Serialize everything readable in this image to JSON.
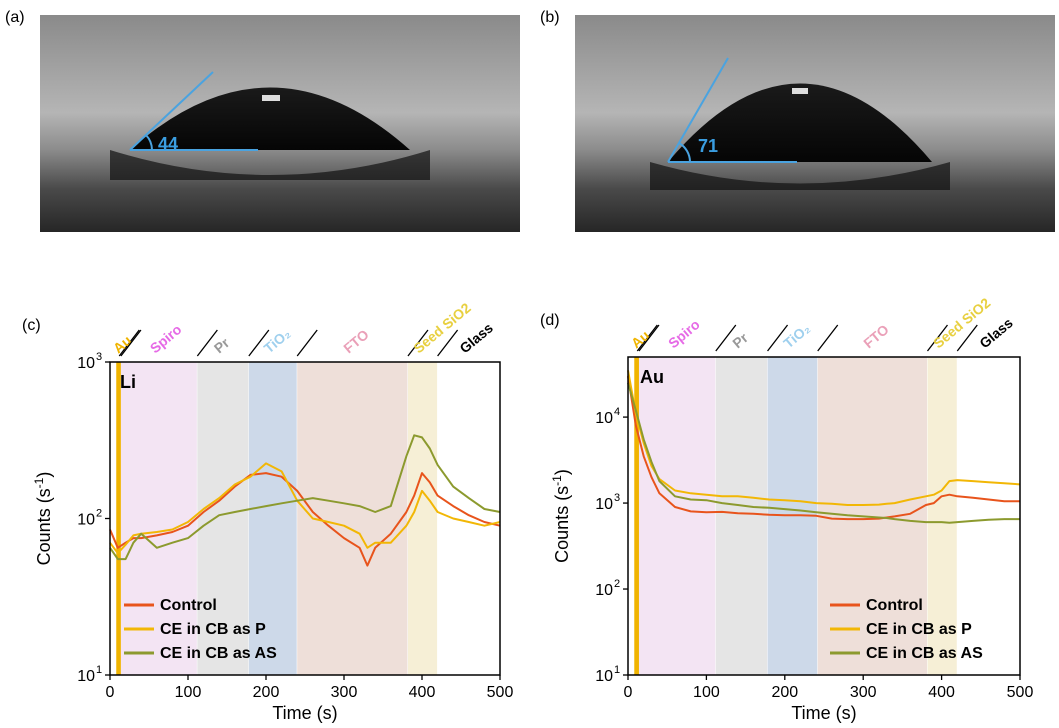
{
  "panels": [
    {
      "label": "(a)",
      "angle": "44"
    },
    {
      "label": "(b)",
      "angle": "71"
    }
  ],
  "chart_data": [
    {
      "type": "line",
      "panel_label": "(c)",
      "element": "Li",
      "xlabel": "Time (s)",
      "ylabel": "Counts (s",
      "ylabel_sup": "-1",
      "ylabel_end": ")",
      "log_y": true,
      "xlim": [
        0,
        500
      ],
      "xticks": [
        0,
        100,
        200,
        300,
        400,
        500
      ],
      "ylim": [
        10,
        1000
      ],
      "yticks": [
        {
          "value": 10,
          "label": "10",
          "exponent": "1"
        },
        {
          "value": 100,
          "label": "10",
          "exponent": "2"
        },
        {
          "value": 1000,
          "label": "10",
          "exponent": "3"
        }
      ],
      "legend": "lower left",
      "layers": [
        {
          "name": "Au",
          "start": 8,
          "end": 14,
          "color": "#f0b400",
          "label_color": "#f0b400"
        },
        {
          "name": "Spiro",
          "start": 14,
          "end": 112,
          "color": "#f3e4f3",
          "label_color": "#e66ae6"
        },
        {
          "name": "Pr",
          "start": 112,
          "end": 178,
          "color": "#e5e5e5",
          "label_color": "#999999"
        },
        {
          "name": "TiO₂",
          "start": 178,
          "end": 240,
          "color": "#cdd9e9",
          "label_color": "#9fd0ee"
        },
        {
          "name": "FTO",
          "start": 240,
          "end": 382,
          "color": "#eedfd9",
          "label_color": "#eaa0b8"
        },
        {
          "name": "Seed SiO2",
          "start": 382,
          "end": 420,
          "color": "#f6efd6",
          "label_color": "#e8d040"
        },
        {
          "name": "Glass",
          "start": 420,
          "end": 500,
          "color": "#ffffff",
          "label_color": "#000000"
        }
      ],
      "x": [
        0,
        10,
        20,
        30,
        40,
        60,
        80,
        100,
        120,
        140,
        160,
        180,
        200,
        220,
        240,
        260,
        280,
        300,
        320,
        330,
        340,
        360,
        380,
        390,
        400,
        410,
        420,
        440,
        460,
        480,
        500
      ],
      "series": [
        {
          "name": "Control",
          "color": "#e8541c",
          "values": [
            85,
            65,
            70,
            75,
            75,
            78,
            82,
            90,
            110,
            130,
            160,
            190,
            195,
            185,
            150,
            110,
            90,
            75,
            65,
            50,
            65,
            80,
            110,
            140,
            195,
            170,
            140,
            120,
            105,
            95,
            90
          ]
        },
        {
          "name": "CE in CB as P",
          "color": "#f2b705",
          "values": [
            70,
            60,
            68,
            78,
            80,
            82,
            85,
            95,
            115,
            135,
            165,
            185,
            225,
            200,
            130,
            100,
            95,
            90,
            80,
            65,
            70,
            70,
            90,
            110,
            150,
            130,
            110,
            100,
            95,
            90,
            95
          ]
        },
        {
          "name": "CE in CB as AS",
          "color": "#8c9a2e",
          "values": [
            65,
            55,
            55,
            70,
            80,
            65,
            70,
            75,
            90,
            105,
            110,
            115,
            120,
            125,
            130,
            135,
            130,
            125,
            120,
            115,
            110,
            120,
            250,
            340,
            330,
            280,
            220,
            160,
            135,
            115,
            110
          ]
        }
      ]
    },
    {
      "type": "line",
      "panel_label": "(d)",
      "element": "Au",
      "xlabel": "Time (s)",
      "ylabel": "Counts (s",
      "ylabel_sup": "-1",
      "ylabel_end": ")",
      "log_y": true,
      "xlim": [
        0,
        500
      ],
      "xticks": [
        0,
        100,
        200,
        300,
        400,
        500
      ],
      "ylim": [
        10,
        50000
      ],
      "yticks": [
        {
          "value": 10,
          "label": "10",
          "exponent": "1"
        },
        {
          "value": 100,
          "label": "10",
          "exponent": "2"
        },
        {
          "value": 1000,
          "label": "10",
          "exponent": "3"
        },
        {
          "value": 10000,
          "label": "10",
          "exponent": "4"
        }
      ],
      "legend": "lower right",
      "layers": [
        {
          "name": "Au",
          "start": 8,
          "end": 14,
          "color": "#f0b400",
          "label_color": "#f0b400"
        },
        {
          "name": "Spiro",
          "start": 14,
          "end": 112,
          "color": "#f3e4f3",
          "label_color": "#e66ae6"
        },
        {
          "name": "Pr",
          "start": 112,
          "end": 178,
          "color": "#e5e5e5",
          "label_color": "#999999"
        },
        {
          "name": "TiO₂",
          "start": 178,
          "end": 242,
          "color": "#cdd9e9",
          "label_color": "#9fd0ee"
        },
        {
          "name": "FTO",
          "start": 242,
          "end": 382,
          "color": "#eedfd9",
          "label_color": "#eaa0b8"
        },
        {
          "name": "Seed SiO2",
          "start": 382,
          "end": 420,
          "color": "#f6efd6",
          "label_color": "#e8d040"
        },
        {
          "name": "Glass",
          "start": 420,
          "end": 500,
          "color": "#ffffff",
          "label_color": "#000000"
        }
      ],
      "x": [
        0,
        10,
        20,
        30,
        40,
        60,
        80,
        100,
        120,
        140,
        160,
        180,
        200,
        220,
        240,
        260,
        280,
        300,
        320,
        330,
        340,
        360,
        380,
        390,
        400,
        410,
        420,
        440,
        460,
        480,
        500
      ],
      "series": [
        {
          "name": "Control",
          "color": "#e8541c",
          "values": [
            30000,
            8000,
            3500,
            2000,
            1300,
            900,
            800,
            780,
            790,
            760,
            750,
            730,
            720,
            720,
            710,
            660,
            650,
            650,
            660,
            680,
            700,
            750,
            950,
            1000,
            1200,
            1250,
            1200,
            1150,
            1100,
            1050,
            1050
          ]
        },
        {
          "name": "CE in CB as P",
          "color": "#f2b705",
          "values": [
            35000,
            11000,
            5000,
            2700,
            1900,
            1400,
            1300,
            1250,
            1200,
            1200,
            1150,
            1100,
            1080,
            1050,
            1000,
            980,
            950,
            950,
            960,
            980,
            1000,
            1100,
            1200,
            1250,
            1400,
            1800,
            1850,
            1800,
            1750,
            1700,
            1650
          ]
        },
        {
          "name": "CE in CB as AS",
          "color": "#8c9a2e",
          "values": [
            25000,
            12000,
            5500,
            3000,
            1800,
            1200,
            1100,
            1080,
            1000,
            950,
            900,
            880,
            850,
            820,
            780,
            750,
            720,
            700,
            680,
            670,
            650,
            620,
            600,
            600,
            600,
            590,
            600,
            620,
            640,
            650,
            650
          ]
        }
      ]
    }
  ]
}
